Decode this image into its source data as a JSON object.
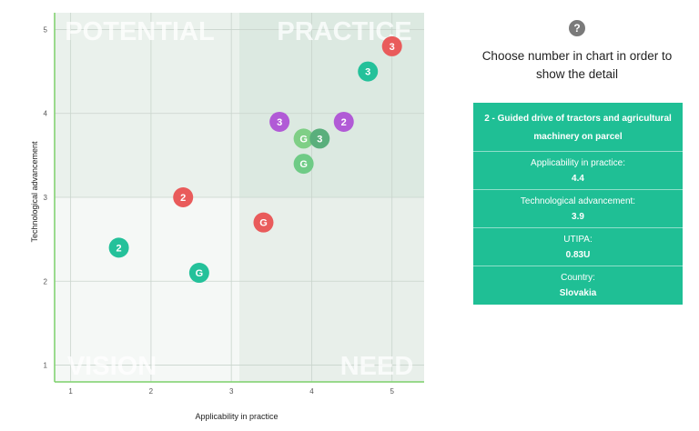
{
  "chart_data": {
    "type": "scatter",
    "xlabel": "Applicability in practice",
    "ylabel": "Technological advancement",
    "xlim": [
      0.8,
      5.4
    ],
    "ylim": [
      0.8,
      5.2
    ],
    "xticks": [
      "1",
      "2",
      "3",
      "4",
      "5"
    ],
    "yticks": [
      "1",
      "2",
      "3",
      "4",
      "5"
    ],
    "quadrant_split": {
      "x": 3.1,
      "y": 3
    },
    "quadrants": [
      {
        "label": "POTENTIAL",
        "position": "top-left"
      },
      {
        "label": "PRACTICE",
        "position": "top-right"
      },
      {
        "label": "VISION",
        "position": "bottom-left"
      },
      {
        "label": "NEED",
        "position": "bottom-right"
      }
    ],
    "points": [
      {
        "x": 5.0,
        "y": 4.8,
        "label": "3",
        "color": "#e95b5b"
      },
      {
        "x": 4.7,
        "y": 4.5,
        "label": "3",
        "color": "#24c19a"
      },
      {
        "x": 3.6,
        "y": 3.9,
        "label": "3",
        "color": "#b15ad6"
      },
      {
        "x": 4.4,
        "y": 3.9,
        "label": "2",
        "color": "#b15ad6"
      },
      {
        "x": 3.9,
        "y": 3.7,
        "label": "G",
        "color": "#7fcf86"
      },
      {
        "x": 4.1,
        "y": 3.7,
        "label": "3",
        "color": "#5aaf7c"
      },
      {
        "x": 3.9,
        "y": 3.4,
        "label": "G",
        "color": "#6fcb86"
      },
      {
        "x": 2.4,
        "y": 3.0,
        "label": "2",
        "color": "#e95b5b"
      },
      {
        "x": 3.4,
        "y": 2.7,
        "label": "G",
        "color": "#e95b5b"
      },
      {
        "x": 1.6,
        "y": 2.4,
        "label": "2",
        "color": "#24c19a"
      },
      {
        "x": 2.6,
        "y": 2.1,
        "label": "G",
        "color": "#24c19a"
      }
    ]
  },
  "help": {
    "icon": "?"
  },
  "instruction": "Choose number in chart in order to show the detail",
  "detail": {
    "title": "2 - Guided drive of tractors and agricultural machinery on parcel",
    "rows": [
      {
        "label": "Applicability in practice:",
        "value": "4.4"
      },
      {
        "label": "Technological advancement:",
        "value": "3.9"
      },
      {
        "label": "UTIPA:",
        "value": "0.83U"
      },
      {
        "label": "Country:",
        "value": "Slovakia"
      }
    ]
  },
  "colors": {
    "accent": "#1fbf95",
    "axis": "#7ccf6a"
  }
}
